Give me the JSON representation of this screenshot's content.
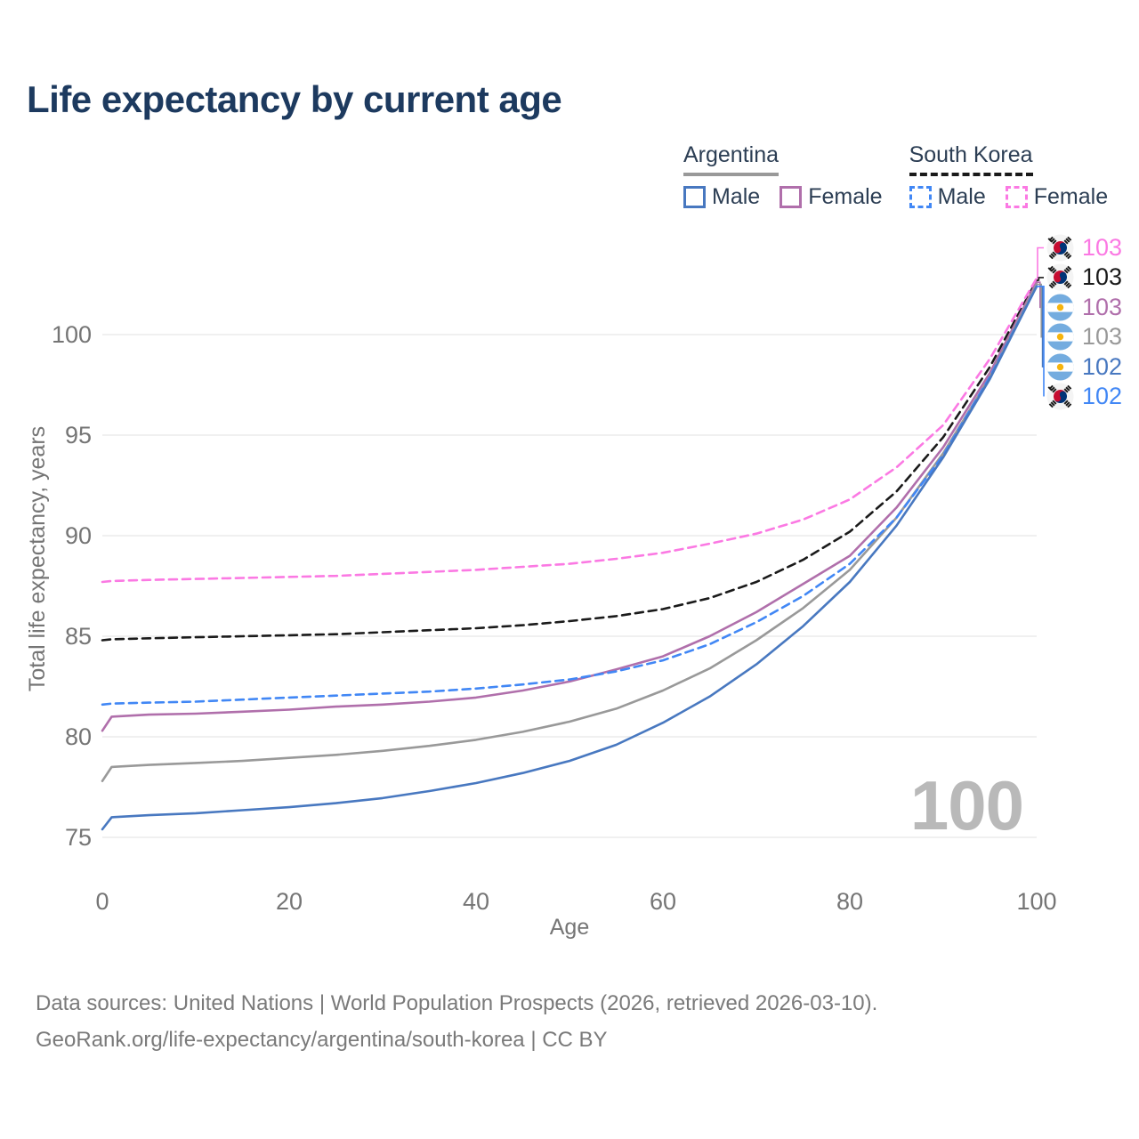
{
  "title": "Life expectancy by current age",
  "legend": {
    "groups": [
      {
        "country": "Argentina",
        "line_style": "solid",
        "line_color": "#999999",
        "items": [
          {
            "label": "Male",
            "color": "#4878c0",
            "dashed": false
          },
          {
            "label": "Female",
            "color": "#b06fab",
            "dashed": false
          }
        ]
      },
      {
        "country": "South Korea",
        "line_style": "dashed",
        "line_color": "#1a1a1a",
        "items": [
          {
            "label": "Male",
            "color": "#4187f5",
            "dashed": true
          },
          {
            "label": "Female",
            "color": "#fb79e3",
            "dashed": true
          }
        ]
      }
    ]
  },
  "watermark": "100",
  "footer": {
    "line1": "Data sources: United Nations | World Population Prospects (2026, retrieved 2026-03-10).",
    "line2": "GeoRank.org/life-expectancy/argentina/south-korea | CC BY"
  },
  "colors": {
    "title_text": "#1d3a5f",
    "axis_text": "#757575",
    "legend_text": "#2c3e54",
    "grid": "#e8e8e8",
    "watermark": "#b9b9b9",
    "footer_text": "#7a7a7a"
  },
  "chart_data": {
    "type": "line",
    "title": "Life expectancy by current age",
    "xlabel": "Age",
    "ylabel": "Total life expectancy, years",
    "xlim": [
      0,
      100
    ],
    "ylim": [
      75,
      100
    ],
    "xticks": [
      0,
      20,
      40,
      60,
      80,
      100
    ],
    "yticks": [
      75,
      80,
      85,
      90,
      95,
      100
    ],
    "grid": "horizontal",
    "legend_position": "top-right",
    "x": [
      0,
      1,
      5,
      10,
      15,
      20,
      25,
      30,
      35,
      40,
      45,
      50,
      55,
      60,
      65,
      70,
      75,
      80,
      85,
      90,
      95,
      100
    ],
    "series": [
      {
        "id": "sk_total",
        "name": "South Korea",
        "country": "south-korea",
        "color": "#1a1a1a",
        "dashed": true,
        "values": [
          84.8,
          84.85,
          84.9,
          84.95,
          85.0,
          85.05,
          85.1,
          85.2,
          85.3,
          85.4,
          85.55,
          85.75,
          86.0,
          86.35,
          86.9,
          87.7,
          88.8,
          90.2,
          92.2,
          94.9,
          98.4,
          102.7
        ]
      },
      {
        "id": "sk_female",
        "name": "South Korea Female",
        "country": "south-korea",
        "color": "#fb79e3",
        "dashed": true,
        "values": [
          87.7,
          87.75,
          87.8,
          87.85,
          87.9,
          87.95,
          88.0,
          88.1,
          88.2,
          88.3,
          88.45,
          88.6,
          88.85,
          89.15,
          89.6,
          90.1,
          90.8,
          91.8,
          93.4,
          95.5,
          98.8,
          102.8
        ]
      },
      {
        "id": "ar_female",
        "name": "Argentina Female",
        "country": "argentina",
        "color": "#b06fab",
        "dashed": false,
        "values": [
          80.3,
          81.0,
          81.1,
          81.15,
          81.25,
          81.35,
          81.5,
          81.6,
          81.75,
          81.95,
          82.3,
          82.75,
          83.35,
          84.0,
          85.0,
          86.2,
          87.6,
          89.0,
          91.4,
          94.4,
          98.1,
          102.6
        ]
      },
      {
        "id": "ar_total",
        "name": "Argentina",
        "country": "argentina",
        "color": "#999999",
        "dashed": false,
        "values": [
          77.8,
          78.5,
          78.6,
          78.7,
          78.8,
          78.95,
          79.1,
          79.3,
          79.55,
          79.85,
          80.25,
          80.75,
          81.4,
          82.3,
          83.4,
          84.8,
          86.4,
          88.3,
          90.9,
          94.1,
          97.9,
          102.5
        ]
      },
      {
        "id": "sk_male",
        "name": "South Korea Male",
        "country": "south-korea",
        "color": "#4187f5",
        "dashed": true,
        "values": [
          81.6,
          81.65,
          81.7,
          81.75,
          81.85,
          81.95,
          82.05,
          82.15,
          82.25,
          82.4,
          82.6,
          82.85,
          83.25,
          83.8,
          84.6,
          85.7,
          87.0,
          88.6,
          90.9,
          94.0,
          97.9,
          102.4
        ]
      },
      {
        "id": "ar_male",
        "name": "Argentina Male",
        "country": "argentina",
        "color": "#4878c0",
        "dashed": false,
        "values": [
          75.4,
          76.0,
          76.1,
          76.2,
          76.35,
          76.5,
          76.7,
          76.95,
          77.3,
          77.7,
          78.2,
          78.8,
          79.6,
          80.7,
          82.0,
          83.6,
          85.5,
          87.7,
          90.5,
          93.9,
          97.8,
          102.4
        ]
      }
    ],
    "right_labels": [
      {
        "series": "sk_female",
        "country": "south-korea",
        "value": "103",
        "color": "#fb79e3"
      },
      {
        "series": "sk_total",
        "country": "south-korea",
        "value": "103",
        "color": "#1a1a1a"
      },
      {
        "series": "ar_female",
        "country": "argentina",
        "value": "103",
        "color": "#b06fab"
      },
      {
        "series": "ar_total",
        "country": "argentina",
        "value": "103",
        "color": "#999999"
      },
      {
        "series": "ar_male",
        "country": "argentina",
        "value": "102",
        "color": "#4878c0"
      },
      {
        "series": "sk_male",
        "country": "south-korea",
        "value": "102",
        "color": "#4187f5"
      }
    ]
  }
}
